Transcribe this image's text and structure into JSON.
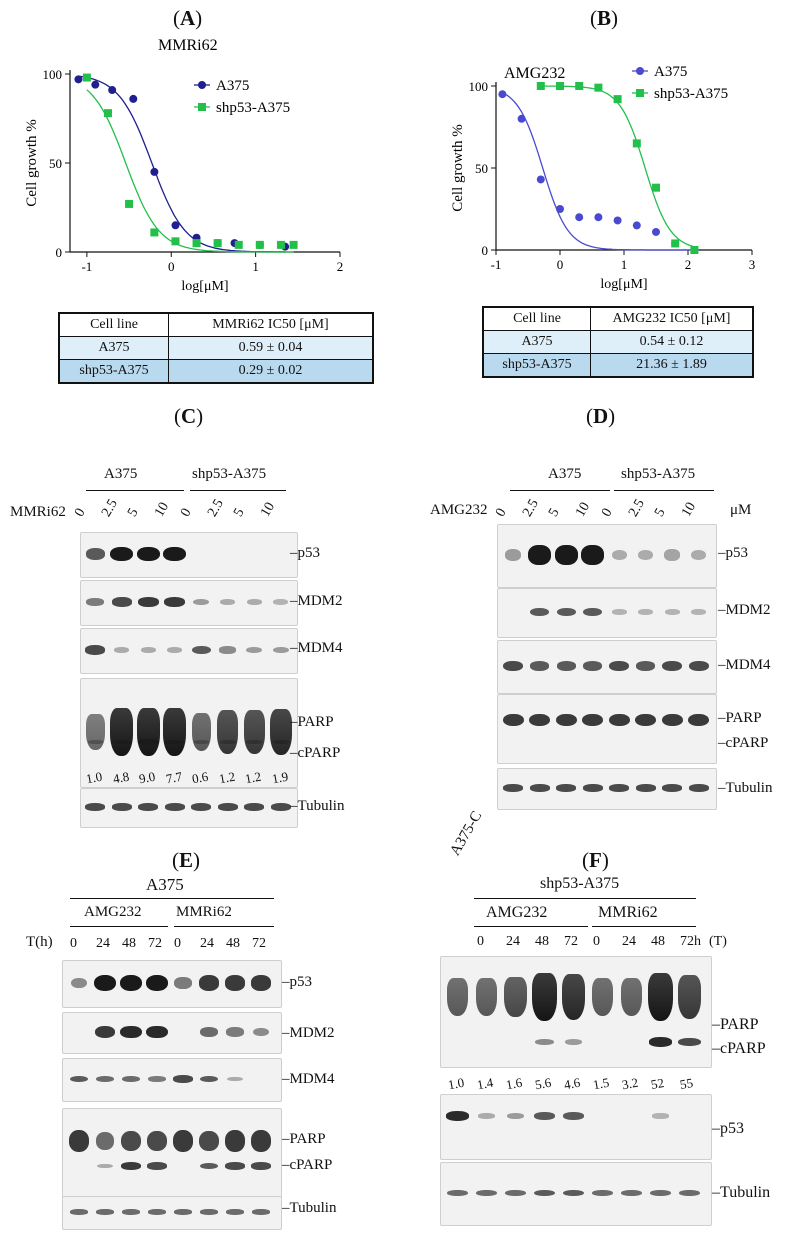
{
  "panels": {
    "A": {
      "label": "A"
    },
    "B": {
      "label": "B"
    },
    "C": {
      "label": "C"
    },
    "D": {
      "label": "D"
    },
    "E": {
      "label": "E"
    },
    "F": {
      "label": "F"
    }
  },
  "chart_data": [
    {
      "type": "scatter",
      "title": "MMRi62",
      "xlabel": "log[μM]",
      "ylabel": "Cell growth %",
      "xlim": [
        -1.2,
        2
      ],
      "ylim": [
        0,
        100
      ],
      "xticks": [
        "-1",
        "0",
        "1",
        "2"
      ],
      "yticks": [
        "0",
        "50",
        "100"
      ],
      "legend": "top-right",
      "series": [
        {
          "name": "A375",
          "color": "#1f1f8f",
          "marker": "circle",
          "x": [
            -1.1,
            -0.9,
            -0.7,
            -0.45,
            -0.2,
            0.05,
            0.3,
            0.55,
            0.75,
            1.05,
            1.35
          ],
          "y": [
            97,
            94,
            91,
            86,
            45,
            15,
            8,
            5,
            5,
            4,
            3
          ],
          "fit_ic50_log": -0.23
        },
        {
          "name": "shp53-A375",
          "color": "#22c04a",
          "marker": "square",
          "x": [
            -1.0,
            -0.75,
            -0.5,
            -0.2,
            0.05,
            0.3,
            0.55,
            0.8,
            1.05,
            1.3,
            1.45
          ],
          "y": [
            98,
            78,
            27,
            11,
            6,
            5,
            5,
            4,
            4,
            4,
            4
          ],
          "fit_ic50_log": -0.54
        }
      ]
    },
    {
      "type": "scatter",
      "title": "AMG232",
      "xlabel": "log[μM]",
      "ylabel": "Cell growth %",
      "xlim": [
        -1,
        3
      ],
      "ylim": [
        0,
        100
      ],
      "xticks": [
        "-1",
        "0",
        "1",
        "2",
        "3"
      ],
      "yticks": [
        "0",
        "50",
        "100"
      ],
      "legend": "top-right",
      "series": [
        {
          "name": "A375",
          "color": "#4a4ad0",
          "marker": "circle",
          "x": [
            -0.9,
            -0.6,
            -0.3,
            0,
            0.3,
            0.6,
            0.9,
            1.2,
            1.5,
            1.8,
            2.1
          ],
          "y": [
            95,
            80,
            43,
            25,
            20,
            20,
            18,
            15,
            11,
            4,
            0
          ],
          "fit_ic50_log": -0.27
        },
        {
          "name": "shp53-A375",
          "color": "#22c04a",
          "marker": "square",
          "x": [
            -0.3,
            0,
            0.3,
            0.6,
            0.9,
            1.2,
            1.5,
            1.8,
            2.1
          ],
          "y": [
            100,
            100,
            100,
            99,
            92,
            65,
            38,
            4,
            0
          ],
          "fit_ic50_log": 1.33
        }
      ]
    }
  ],
  "tables": {
    "A": {
      "header": [
        "Cell line",
        "MMRi62 IC50 [μM]"
      ],
      "rows": [
        [
          "A375",
          "0.59 ± 0.04"
        ],
        [
          "shp53-A375",
          "0.29  ± 0.02"
        ]
      ]
    },
    "B": {
      "header": [
        "Cell line",
        "AMG232 IC50 [μM]"
      ],
      "rows": [
        [
          "A375",
          "0.54 ± 0.12"
        ],
        [
          "shp53-A375",
          "21.36 ± 1.89"
        ]
      ]
    }
  },
  "blots": {
    "C": {
      "groups": [
        "A375",
        "shp53-A375"
      ],
      "treatment": "MMRi62",
      "lanes": [
        "0",
        "2.5",
        "5",
        "10",
        "0",
        "2.5",
        "5",
        "10"
      ],
      "rows": [
        "p53",
        "MDM2",
        "MDM4",
        "PARP",
        "cPARP",
        "Tubulin"
      ],
      "quant": [
        "1.0",
        "4.8",
        "9.0",
        "7.7",
        "0.6",
        "1.2",
        "1.2",
        "1.9"
      ]
    },
    "D": {
      "groups": [
        "A375",
        "shp53-A375"
      ],
      "treatment": "AMG232",
      "unit": "μM",
      "lanes": [
        "0",
        "2.5",
        "5",
        "10",
        "0",
        "2.5",
        "5",
        "10"
      ],
      "rows": [
        "p53",
        "MDM2",
        "MDM4",
        "PARP",
        "cPARP",
        "Tubulin"
      ]
    },
    "E": {
      "cell": "A375",
      "groups": [
        "AMG232",
        "MMRi62"
      ],
      "time_label": "T(h)",
      "lanes": [
        "0",
        "24",
        "48",
        "72",
        "0",
        "24",
        "48",
        "72"
      ],
      "rows": [
        "p53",
        "MDM2",
        "MDM4",
        "PARP",
        "cPARP",
        "Tubulin"
      ]
    },
    "F": {
      "control": "A375-C",
      "cell": "shp53-A375",
      "groups": [
        "AMG232",
        "MMRi62"
      ],
      "lanes": [
        "0",
        "24",
        "48",
        "72",
        "0",
        "24",
        "48",
        "72h",
        "(T)"
      ],
      "rows": [
        "PARP",
        "cPARP",
        "p53",
        "Tubulin"
      ],
      "quant": [
        "1.0",
        "1.4",
        "1.6",
        "5.6",
        "4.6",
        "1.5",
        "3.2",
        "52",
        "55"
      ]
    }
  }
}
